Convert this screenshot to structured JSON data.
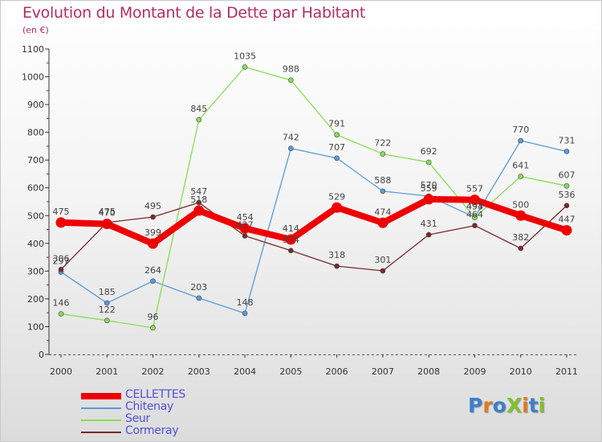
{
  "title": "Evolution du Montant de la Dette par Habitant",
  "subtitle": "(en €)",
  "logo": {
    "text": "ProXiti",
    "letters": [
      {
        "ch": "P",
        "color": "#3a7fd0"
      },
      {
        "ch": "r",
        "color": "#e07a1f"
      },
      {
        "ch": "o",
        "color": "#3a7fd0"
      },
      {
        "ch": "X",
        "color": "#7fc030"
      },
      {
        "ch": "i",
        "color": "#e07a1f"
      },
      {
        "ch": "t",
        "color": "#3a7fd0"
      },
      {
        "ch": "i",
        "color": "#7fc030"
      }
    ]
  },
  "chart_data": {
    "type": "line",
    "title": "Evolution du Montant de la Dette par Habitant",
    "subtitle": "(en €)",
    "xlabel": "",
    "ylabel": "",
    "x": [
      "2000",
      "2001",
      "2002",
      "2003",
      "2004",
      "2005",
      "2006",
      "2007",
      "2008",
      "2009",
      "2010",
      "2011"
    ],
    "ylim": [
      0,
      1100
    ],
    "yticks": [
      0,
      100,
      200,
      300,
      400,
      500,
      600,
      700,
      800,
      900,
      1000,
      1100
    ],
    "grid": false,
    "legend_position": "bottom-left",
    "series": [
      {
        "name": "CELLETTES",
        "color": "#ee0000",
        "values": [
          475,
          470,
          399,
          518,
          454,
          414,
          529,
          474,
          559,
          557,
          500,
          447
        ],
        "labels": [
          "475",
          "470",
          "399",
          "518",
          "454",
          "414",
          "529",
          "474",
          "559",
          "557",
          "500",
          "447"
        ]
      },
      {
        "name": "Chitenay",
        "color": "#5a9ad8",
        "values": [
          297,
          185,
          264,
          203,
          148,
          742,
          707,
          588,
          570,
          494,
          770,
          731
        ],
        "labels": [
          "297",
          "185",
          "264",
          "203",
          "148",
          "742",
          "707",
          "588",
          "570",
          "494",
          "770",
          "731"
        ]
      },
      {
        "name": "Seur",
        "color": "#88dd55",
        "values": [
          146,
          122,
          96,
          845,
          1035,
          988,
          791,
          722,
          692,
          493,
          641,
          607
        ],
        "labels": [
          "146",
          "122",
          "96",
          "845",
          "1035",
          "988",
          "791",
          "722",
          "692",
          "493",
          "641",
          "607"
        ]
      },
      {
        "name": "Cormeray",
        "color": "#7a2a2a",
        "values": [
          306,
          475,
          495,
          547,
          427,
          374,
          318,
          301,
          431,
          464,
          382,
          536
        ],
        "labels": [
          "306",
          "475",
          "495",
          "547",
          "427",
          "374",
          "318",
          "301",
          "431",
          "464",
          "382",
          "536"
        ]
      }
    ]
  }
}
